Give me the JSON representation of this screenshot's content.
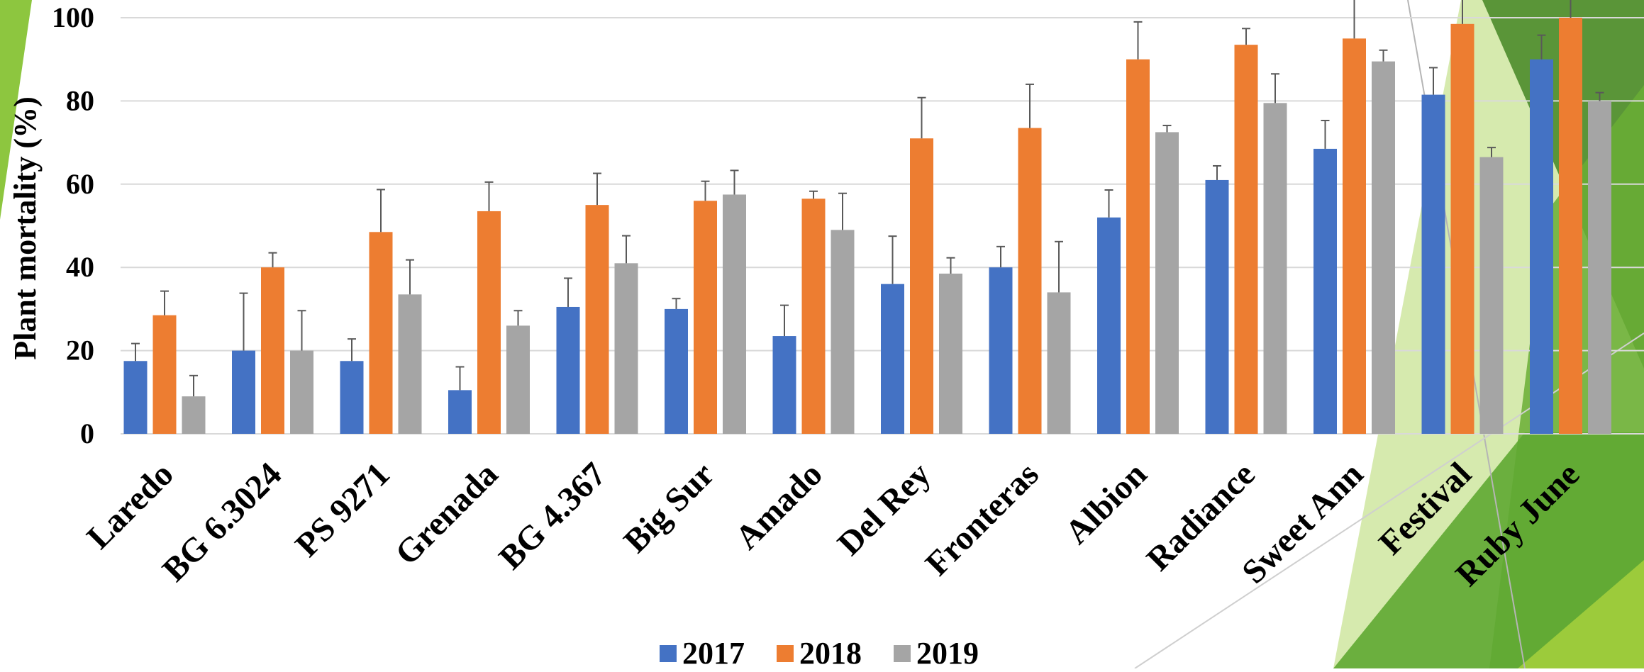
{
  "chart_data": {
    "type": "bar",
    "ylabel": "Plant mortality (%)",
    "xlabel": "",
    "ylim": [
      0,
      100
    ],
    "yticks": [
      "0",
      "20",
      "40",
      "60",
      "80",
      "100"
    ],
    "grid": true,
    "legend_position": "bottom",
    "categories": [
      "Laredo",
      "BG 6.3024",
      "PS 9271",
      "Grenada",
      "BG 4.367",
      "Big Sur",
      "Amado",
      "Del Rey",
      "Fronteras",
      "Albion",
      "Radiance",
      "Sweet Ann",
      "Festival",
      "Ruby June"
    ],
    "series": [
      {
        "name": "2017",
        "color": "#4472C4",
        "values": [
          17.5,
          20,
          17.5,
          10.5,
          30.5,
          30,
          23.5,
          36,
          40,
          52,
          61,
          68.5,
          81.5,
          90
        ],
        "errors": [
          4.2,
          13.8,
          5.3,
          5.6,
          6.9,
          2.5,
          7.4,
          11.5,
          5,
          6.6,
          3.4,
          6.8,
          6.5,
          5.8
        ]
      },
      {
        "name": "2018",
        "color": "#ED7D31",
        "values": [
          28.5,
          40,
          48.5,
          53.5,
          55,
          56,
          56.5,
          71,
          73.5,
          90,
          93.5,
          95,
          98.5,
          100
        ],
        "errors": [
          5.8,
          3.5,
          10.2,
          7,
          7.6,
          4.7,
          1.8,
          9.8,
          10.5,
          9,
          3.9,
          11,
          6,
          6
        ]
      },
      {
        "name": "2019",
        "color": "#A5A5A5",
        "values": [
          9,
          20,
          33.5,
          26,
          41,
          57.5,
          49,
          38.5,
          34,
          72.5,
          79.5,
          89.5,
          66.5,
          80
        ],
        "errors": [
          5,
          9.6,
          8.3,
          3.6,
          6.6,
          5.8,
          8.8,
          3.8,
          12.2,
          1.6,
          7,
          2.7,
          2.3,
          2
        ]
      }
    ]
  }
}
